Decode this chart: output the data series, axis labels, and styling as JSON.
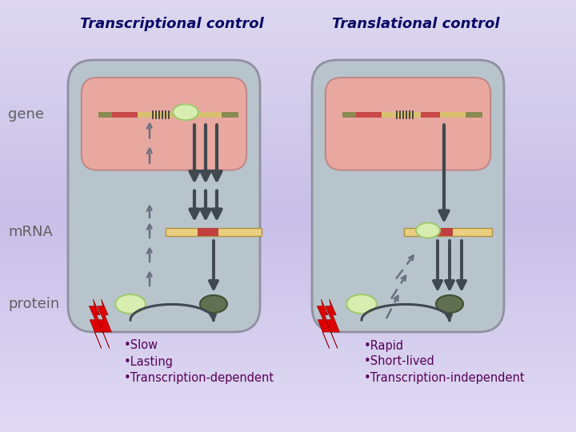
{
  "title_left": "Transcriptional control",
  "title_right": "Translational control",
  "label_gene": "gene",
  "label_mrna": "mRNA",
  "label_protein": "protein",
  "bg_gradient_top": "#d8d0f0",
  "bg_gradient_bot": "#e8e4f4",
  "cell_face": "#b8c4cc",
  "cell_edge": "#9090a0",
  "nuc_face": "#e8a8a0",
  "nuc_edge": "#c08888",
  "arrow_dark": "#404850",
  "arrow_dash": "#6a7080",
  "title_color": "#080868",
  "label_color": "#606060",
  "bullet_color": "#580058",
  "bullet_left": [
    "Slow",
    "Lasting",
    "Transcription-dependent"
  ],
  "bullet_right": [
    "Rapid",
    "Short-lived",
    "Transcription-independent"
  ]
}
